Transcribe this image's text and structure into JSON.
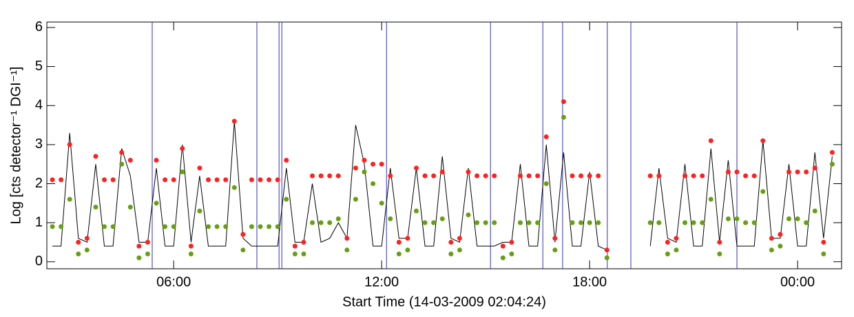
{
  "chart_data": {
    "type": "scatter",
    "xlabel": "Start Time (14-03-2009 02:04:24)",
    "ylabel": "Log [cts detector⁻¹ DGI⁻¹]",
    "xlim": [
      2.34,
      25.27
    ],
    "ylim": [
      -0.18,
      6.14
    ],
    "xticks": [
      {
        "value": 6,
        "label": "06:00"
      },
      {
        "value": 12,
        "label": "12:00"
      },
      {
        "value": 18,
        "label": "18:00"
      },
      {
        "value": 24,
        "label": "00:00"
      }
    ],
    "yticks": [
      0,
      1,
      2,
      3,
      4,
      5,
      6
    ],
    "vlines": {
      "color": "#3030c0",
      "x": [
        5.38,
        8.4,
        9.04,
        9.12,
        12.14,
        15.14,
        16.65,
        17.22,
        18.51,
        19.19,
        22.25
      ]
    },
    "x": [
      2.5,
      2.75,
      3,
      3.25,
      3.5,
      3.75,
      4,
      4.25,
      4.5,
      4.75,
      5,
      5.25,
      5.5,
      5.75,
      6,
      6.25,
      6.5,
      6.75,
      7,
      7.25,
      7.5,
      7.75,
      8,
      8.25,
      8.5,
      8.75,
      9,
      9.25,
      9.5,
      9.75,
      10,
      10.25,
      10.5,
      10.75,
      11,
      11.25,
      11.5,
      11.75,
      12,
      12.25,
      12.5,
      12.75,
      13,
      13.25,
      13.5,
      13.75,
      14,
      14.25,
      14.5,
      14.75,
      15,
      15.25,
      15.5,
      15.75,
      16,
      16.25,
      16.5,
      16.75,
      17,
      17.25,
      17.5,
      17.75,
      18,
      18.25,
      18.5,
      18.75,
      19,
      19.25,
      19.5,
      19.75,
      20,
      20.25,
      20.5,
      20.75,
      21,
      21.25,
      21.5,
      21.75,
      22,
      22.25,
      22.5,
      22.75,
      23,
      23.25,
      23.5,
      23.75,
      24,
      24.25,
      24.5,
      24.75,
      25
    ],
    "series": [
      {
        "style": "line",
        "color": "#000000",
        "values": [
          0.4,
          0.4,
          3.3,
          0.6,
          0.5,
          2.5,
          0.4,
          0.4,
          2.9,
          2.2,
          0.5,
          0.5,
          2.4,
          0.4,
          0.4,
          3.0,
          0.5,
          2.2,
          0.4,
          0.4,
          0.4,
          3.6,
          0.6,
          0.4,
          0.4,
          0.4,
          0.4,
          2.4,
          0.5,
          0.5,
          2.0,
          0.5,
          0.6,
          1.0,
          0.6,
          3.5,
          2.5,
          0.4,
          0.4,
          2.4,
          0.6,
          0.6,
          2.4,
          0.4,
          0.4,
          2.7,
          0.6,
          0.5,
          2.4,
          0.4,
          0.4,
          0.4,
          0.5,
          0.5,
          2.5,
          0.4,
          0.4,
          3.0,
          0.5,
          2.8,
          0.4,
          0.4,
          2.3,
          0.4,
          0.3,
          null,
          null,
          null,
          null,
          0.4,
          2.4,
          0.6,
          0.5,
          2.5,
          0.4,
          0.4,
          2.9,
          0.5,
          2.6,
          0.4,
          0.4,
          0.4,
          3.1,
          0.6,
          0.6,
          2.5,
          0.4,
          0.4,
          2.8,
          0.6,
          2.7
        ]
      },
      {
        "style": "points",
        "color": "#66a010",
        "values": [
          0.9,
          0.9,
          1.6,
          0.2,
          0.3,
          1.4,
          0.9,
          0.9,
          2.5,
          1.4,
          0.1,
          0.2,
          1.5,
          0.9,
          0.9,
          2.3,
          0.2,
          1.3,
          0.9,
          0.9,
          0.9,
          1.9,
          0.3,
          0.9,
          0.9,
          0.9,
          0.9,
          1.6,
          0.2,
          0.2,
          1.0,
          1.0,
          1.0,
          1.1,
          0.3,
          1.6,
          2.3,
          2.0,
          1.5,
          1.1,
          0.2,
          0.3,
          1.3,
          1.0,
          1.0,
          1.1,
          0.2,
          0.3,
          1.2,
          1.0,
          1.0,
          1.0,
          0.1,
          0.2,
          1.0,
          1.0,
          1.0,
          2.0,
          0.3,
          3.7,
          1.0,
          1.0,
          1.0,
          1.0,
          0.1,
          null,
          null,
          null,
          null,
          1.0,
          1.0,
          0.2,
          0.3,
          1.0,
          1.0,
          1.0,
          1.6,
          0.2,
          1.1,
          1.1,
          1.0,
          1.0,
          1.8,
          0.3,
          0.4,
          1.1,
          1.1,
          1.0,
          1.3,
          0.2,
          2.5
        ]
      },
      {
        "style": "points",
        "color": "#ff2020",
        "values": [
          2.1,
          2.1,
          3.0,
          0.5,
          0.6,
          2.7,
          2.1,
          2.1,
          2.8,
          2.6,
          0.4,
          0.5,
          2.6,
          2.1,
          2.1,
          2.9,
          0.4,
          2.4,
          2.1,
          2.1,
          2.1,
          3.6,
          0.7,
          2.1,
          2.1,
          2.1,
          2.1,
          2.6,
          0.4,
          0.5,
          2.2,
          2.2,
          2.2,
          2.2,
          0.6,
          2.4,
          2.6,
          2.5,
          2.5,
          2.2,
          0.5,
          0.6,
          2.4,
          2.2,
          2.2,
          2.3,
          0.5,
          0.6,
          2.3,
          2.2,
          2.2,
          2.2,
          0.4,
          0.5,
          2.2,
          2.2,
          2.2,
          3.2,
          0.6,
          4.1,
          2.2,
          2.2,
          2.2,
          2.2,
          0.3,
          null,
          null,
          null,
          null,
          2.2,
          2.2,
          0.5,
          0.6,
          2.2,
          2.2,
          2.2,
          3.1,
          0.5,
          2.3,
          2.3,
          2.2,
          2.2,
          3.1,
          0.6,
          0.7,
          2.3,
          2.3,
          2.3,
          2.4,
          0.5,
          2.8
        ]
      }
    ]
  }
}
